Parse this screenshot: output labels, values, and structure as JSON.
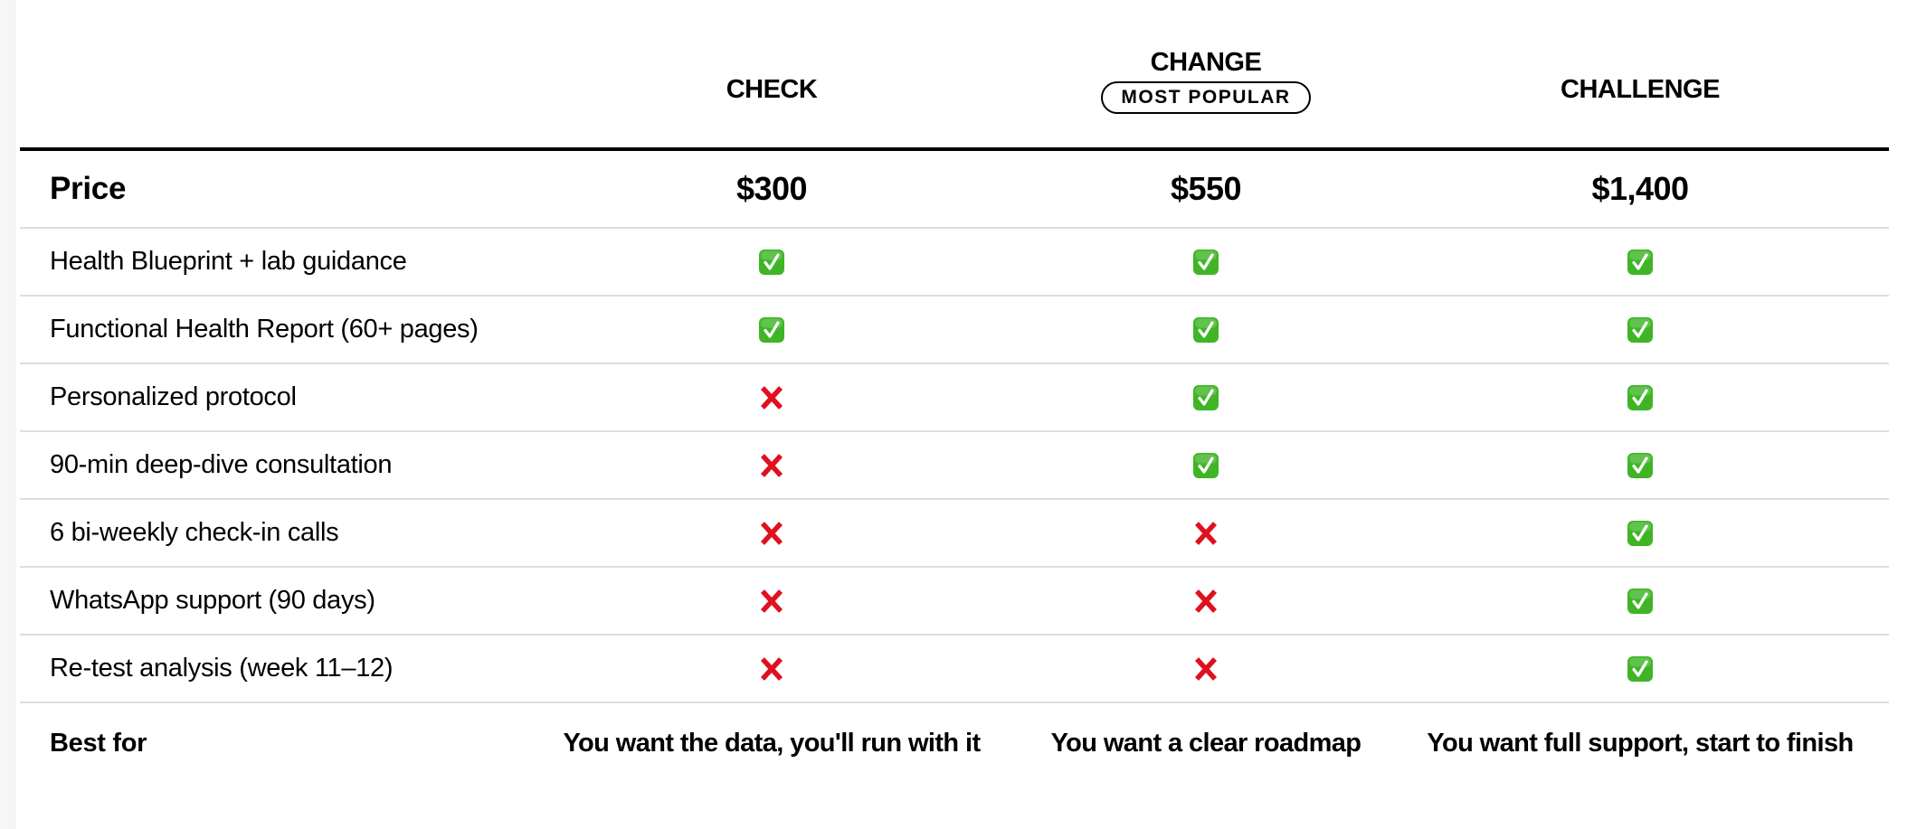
{
  "plans": [
    {
      "name": "CHECK",
      "price": "$300",
      "best_for": "You want the data, you'll run with it"
    },
    {
      "name": "CHANGE",
      "badge": "MOST POPULAR",
      "price": "$550",
      "best_for": "You want a clear roadmap"
    },
    {
      "name": "CHALLENGE",
      "price": "$1,400",
      "best_for": "You want full support, start to finish"
    }
  ],
  "price_label": "Price",
  "best_for_label": "Best for",
  "features": [
    {
      "label": "Health Blueprint + lab guidance",
      "included": [
        true,
        true,
        true
      ]
    },
    {
      "label": "Functional Health Report (60+ pages)",
      "included": [
        true,
        true,
        true
      ]
    },
    {
      "label": "Personalized protocol",
      "included": [
        false,
        true,
        true
      ]
    },
    {
      "label": "90-min deep-dive consultation",
      "included": [
        false,
        true,
        true
      ]
    },
    {
      "label": "6 bi-weekly check-in calls",
      "included": [
        false,
        false,
        true
      ]
    },
    {
      "label": "WhatsApp support (90 days)",
      "included": [
        false,
        false,
        true
      ]
    },
    {
      "label": "Re-test analysis (week 11–12)",
      "included": [
        false,
        false,
        true
      ]
    }
  ],
  "icons": {
    "included": "check-mark-button-icon",
    "excluded": "cross-mark-icon"
  },
  "colors": {
    "check": "#3fb526",
    "cross": "#e0101e",
    "divider": "#dedede"
  }
}
